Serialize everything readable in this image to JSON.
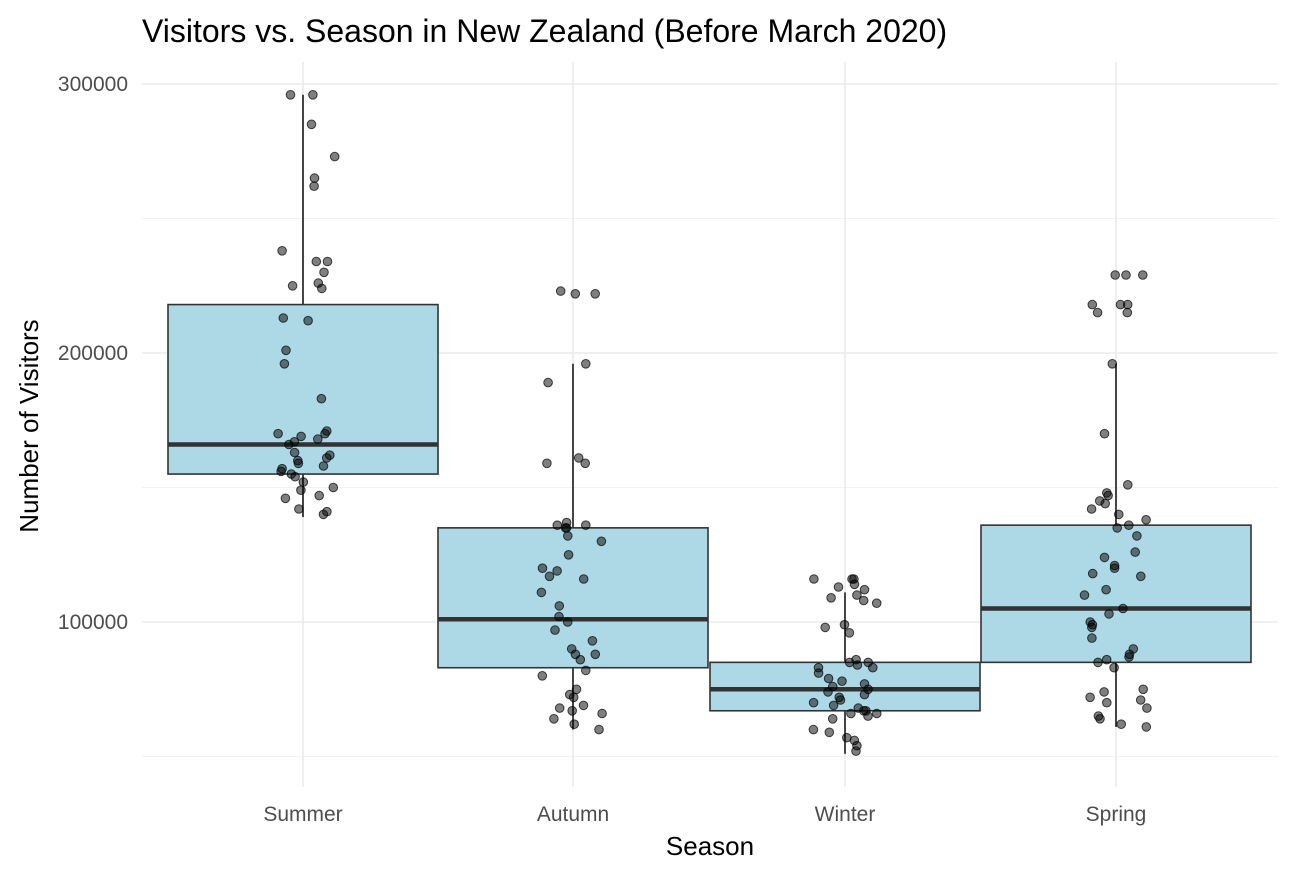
{
  "chart_data": {
    "type": "boxplot",
    "title": "Visitors vs. Season in New Zealand (Before March 2020)",
    "xlabel": "Season",
    "ylabel": "Number of Visitors",
    "ylim": [
      40000,
      308000
    ],
    "yticks": [
      100000,
      200000,
      300000
    ],
    "ytick_labels": [
      "100000",
      "200000",
      "300000"
    ],
    "grid": true,
    "legend": "none",
    "box_fill": "#add8e6",
    "point_color": "#000000",
    "categories": [
      "Summer",
      "Autumn",
      "Winter",
      "Spring"
    ],
    "boxes": [
      {
        "name": "Summer",
        "min": 139000,
        "q1": 155000,
        "median": 166000,
        "q3": 218000,
        "max": 296000
      },
      {
        "name": "Autumn",
        "min": 60000,
        "q1": 83000,
        "median": 101000,
        "q3": 135000,
        "max": 196000
      },
      {
        "name": "Winter",
        "min": 51000,
        "q1": 67000,
        "median": 75000,
        "q3": 85000,
        "max": 111000
      },
      {
        "name": "Spring",
        "min": 61000,
        "q1": 85000,
        "median": 105000,
        "q3": 136000,
        "max": 196000
      }
    ],
    "points": [
      {
        "name": "Summer",
        "values": [
          296000,
          296000,
          285000,
          273000,
          265000,
          262000,
          238000,
          234000,
          234000,
          230000,
          226000,
          225000,
          224000,
          213000,
          212000,
          201000,
          196000,
          183000,
          171000,
          170000,
          170000,
          169000,
          168000,
          167000,
          166000,
          163000,
          162000,
          161000,
          160000,
          159000,
          158000,
          157000,
          156000,
          155000,
          154000,
          152000,
          150000,
          149000,
          147000,
          146000,
          142000,
          141000,
          140000
        ]
      },
      {
        "name": "Autumn",
        "values": [
          223000,
          222000,
          222000,
          196000,
          189000,
          161000,
          159000,
          159000,
          137000,
          136000,
          136000,
          135000,
          135000,
          132000,
          130000,
          125000,
          120000,
          119000,
          117000,
          116000,
          111000,
          106000,
          102000,
          100000,
          97000,
          93000,
          90000,
          88000,
          88000,
          86000,
          82000,
          80000,
          75000,
          73000,
          72000,
          69000,
          68000,
          67000,
          66000,
          64000,
          62000,
          60000
        ]
      },
      {
        "name": "Winter",
        "values": [
          116000,
          116000,
          116000,
          114000,
          113000,
          112000,
          110000,
          109000,
          108000,
          107000,
          99000,
          98000,
          96000,
          86000,
          85000,
          85000,
          84000,
          83000,
          83000,
          81000,
          79000,
          78000,
          77000,
          76000,
          75000,
          74000,
          73000,
          72000,
          71000,
          70000,
          69000,
          68000,
          67000,
          67000,
          66000,
          66000,
          65000,
          64000,
          60000,
          59000,
          57000,
          56000,
          54000,
          52000
        ]
      },
      {
        "name": "Spring",
        "values": [
          229000,
          229000,
          229000,
          218000,
          218000,
          218000,
          215000,
          215000,
          196000,
          170000,
          151000,
          148000,
          147000,
          145000,
          144000,
          142000,
          140000,
          138000,
          136000,
          135000,
          132000,
          126000,
          124000,
          121000,
          120000,
          118000,
          117000,
          112000,
          110000,
          105000,
          103000,
          100000,
          99000,
          98000,
          94000,
          90000,
          88000,
          87000,
          86000,
          85000,
          83000,
          75000,
          74000,
          72000,
          71000,
          70000,
          68000,
          65000,
          64000,
          62000,
          61000
        ]
      }
    ]
  }
}
